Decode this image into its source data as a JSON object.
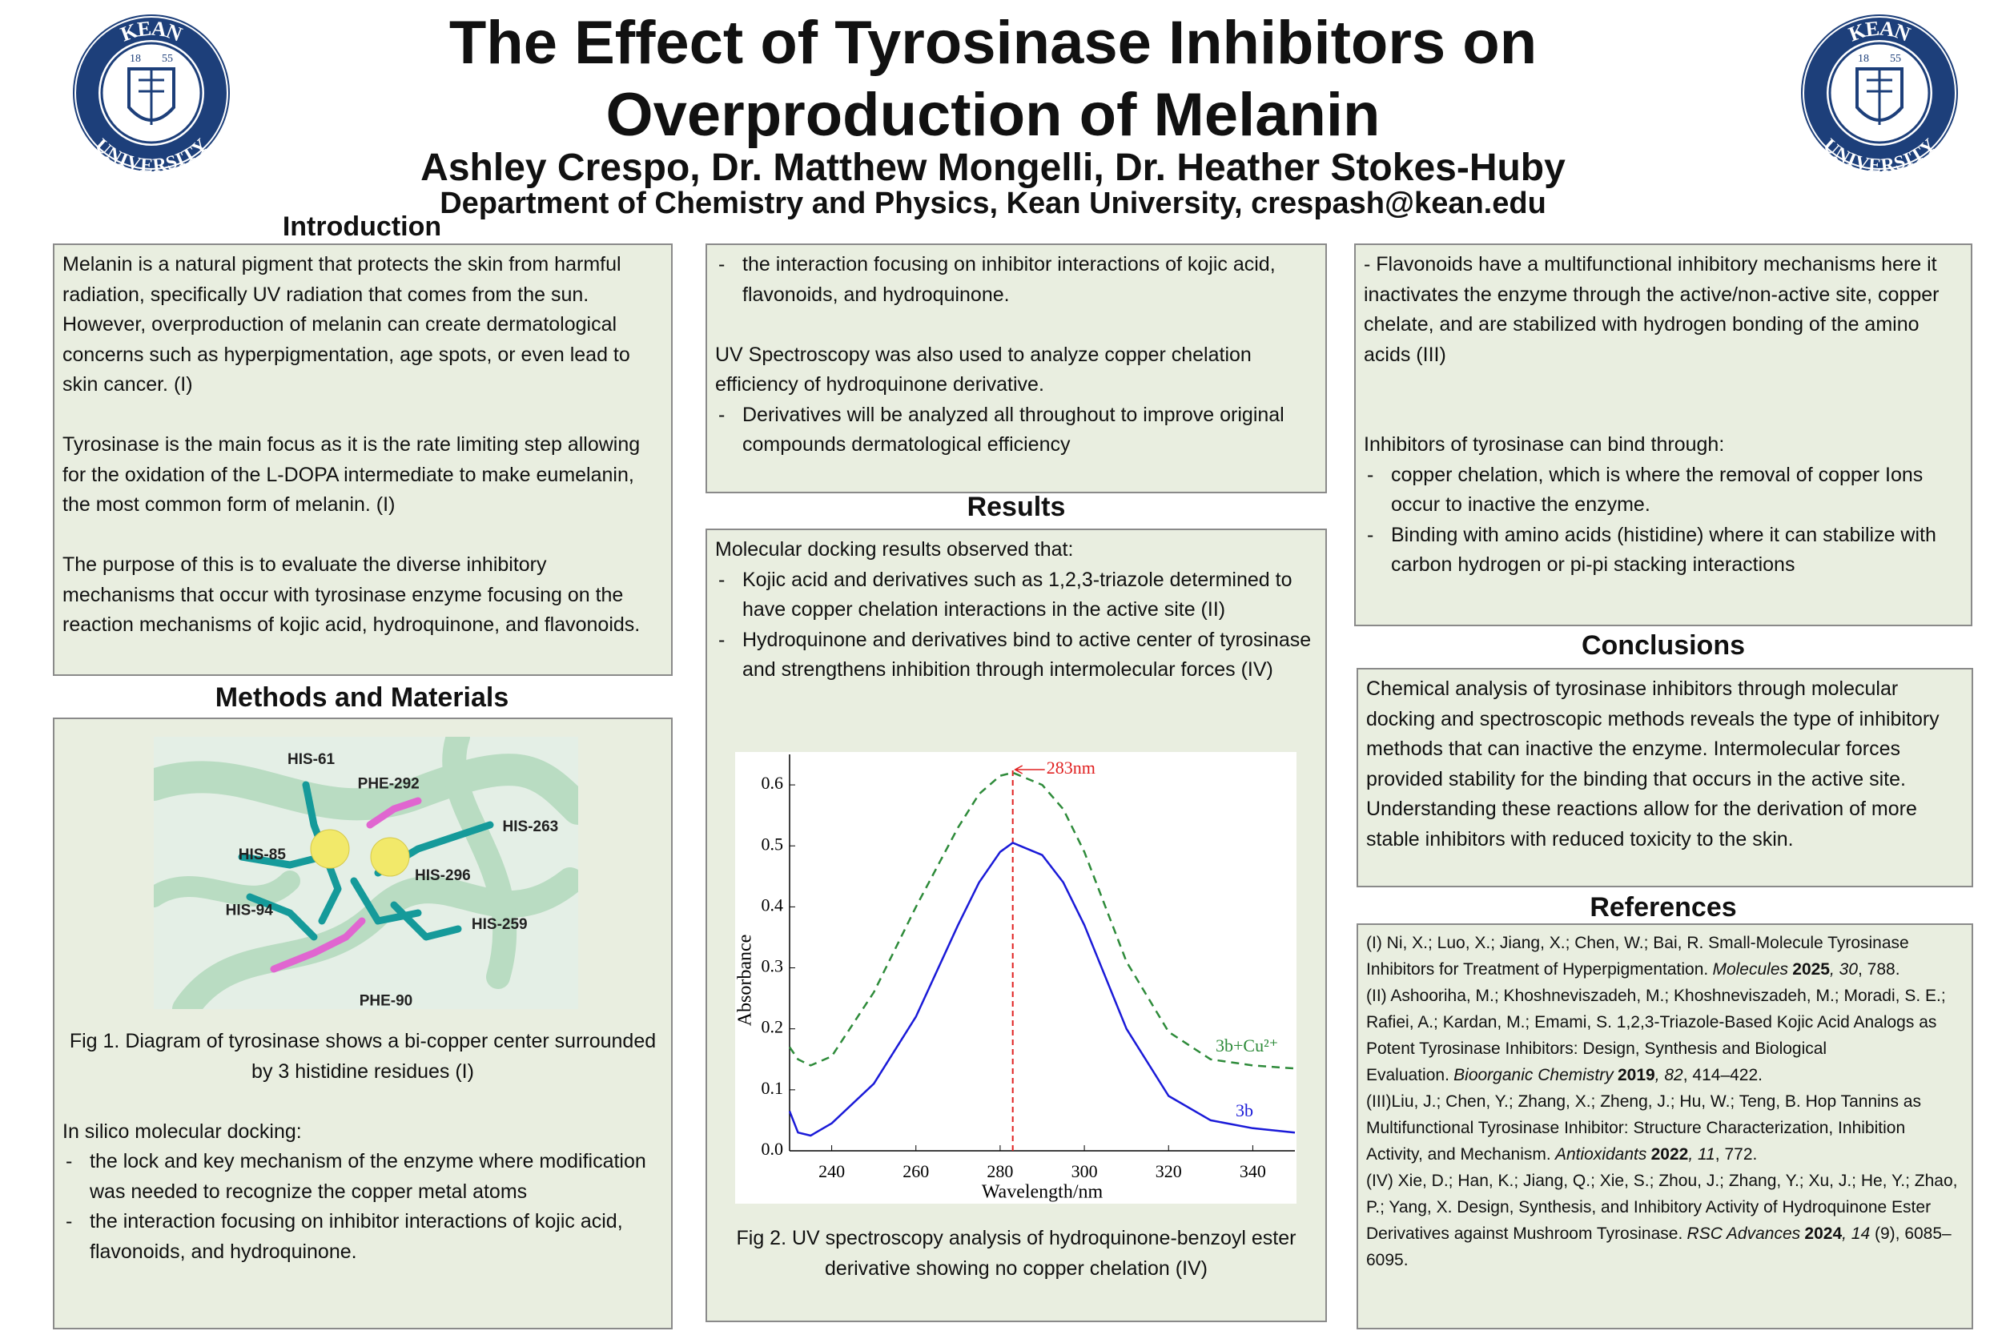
{
  "header": {
    "title_line1": "The Effect of Tyrosinase Inhibitors on",
    "title_line2": "Overproduction of Melanin",
    "authors": "Ashley Crespo, Dr. Matthew Mongelli, Dr. Heather Stokes-Huby",
    "affiliation": "Department of Chemistry and Physics, Kean University, crespash@kean.edu"
  },
  "logo": {
    "top": "KEAN",
    "bottom": "UNIVERSITY",
    "year_left": "18",
    "year_right": "55"
  },
  "bullet": "-",
  "introduction": {
    "heading": "Introduction",
    "paragraphs": [
      "Melanin is a natural pigment that protects the skin from harmful radiation, specifically UV radiation that comes from the sun. However, overproduction of melanin can create dermatological concerns such as hyperpigmentation, age spots, or even lead to skin cancer. (I)",
      "Tyrosinase is the main focus as it is the rate limiting step allowing for the oxidation of the L-DOPA intermediate to make eumelanin, the most common form of melanin. (I)",
      "The purpose of this is to evaluate the diverse inhibitory mechanisms that occur with tyrosinase enzyme focusing  on the reaction mechanisms of kojic acid, hydroquinone, and flavonoids."
    ]
  },
  "methods": {
    "heading": "Methods and Materials",
    "figure1": {
      "labels": [
        "HIS-61",
        "PHE-292",
        "HIS-263",
        "HIS-85",
        "HIS-296",
        "HIS-94",
        "HIS-259",
        "PHE-90"
      ],
      "caption": "Fig 1. Diagram of tyrosinase shows a bi-copper center surrounded by 3 histidine residues (I)"
    },
    "subheading": "In silico molecular docking:",
    "items": [
      "the lock and key mechanism of the enzyme where modification was needed to recognize the copper metal atoms",
      "the interaction focusing on inhibitor interactions of kojic acid, flavonoids, and hydroquinone."
    ]
  },
  "methods_continued": {
    "items": [
      "the interaction focusing on inhibitor interactions of kojic acid, flavonoids, and hydroquinone."
    ],
    "paragraph": "UV Spectroscopy was also used to  analyze copper chelation efficiency of hydroquinone derivative.",
    "items2": [
      "Derivatives will be analyzed all throughout to improve original compounds dermatological efficiency"
    ]
  },
  "results": {
    "heading": "Results",
    "intro": "Molecular docking results observed that:",
    "items": [
      "Kojic acid and derivatives such as 1,2,3-triazole determined to have copper chelation interactions in the active site (II)",
      "Hydroquinone and derivatives bind to active center of tyrosinase and strengthens inhibition through intermolecular forces (IV)"
    ],
    "caption": "Fig 2. UV spectroscopy analysis of hydroquinone-benzoyl ester derivative showing no copper chelation (IV)"
  },
  "chart_data": {
    "type": "line",
    "xlabel": "Wavelength/nm",
    "ylabel": "Absorbance",
    "x": [
      230,
      232,
      235,
      240,
      250,
      260,
      270,
      275,
      280,
      283,
      290,
      295,
      300,
      310,
      320,
      330,
      340,
      350
    ],
    "series": [
      {
        "name": "3b",
        "color": "#1a1ad8",
        "dashed": false,
        "values": [
          0.065,
          0.03,
          0.025,
          0.045,
          0.11,
          0.22,
          0.37,
          0.44,
          0.49,
          0.505,
          0.485,
          0.44,
          0.37,
          0.2,
          0.09,
          0.05,
          0.037,
          0.03
        ]
      },
      {
        "name": "3b+Cu²⁺",
        "color": "#2e8b3a",
        "dashed": true,
        "values": [
          0.17,
          0.15,
          0.14,
          0.155,
          0.26,
          0.4,
          0.53,
          0.585,
          0.615,
          0.62,
          0.6,
          0.56,
          0.49,
          0.31,
          0.195,
          0.15,
          0.14,
          0.135
        ]
      }
    ],
    "xlim": [
      230,
      350
    ],
    "ylim": [
      0,
      0.65
    ],
    "xticks": [
      240,
      260,
      280,
      300,
      320,
      340
    ],
    "yticks": [
      {
        "value": 0,
        "label": "0.0"
      },
      0.1,
      0.2,
      0.3,
      0.4,
      0.5,
      0.6
    ],
    "annotation": {
      "text": "283nm",
      "x": 283,
      "color": "#e02020"
    }
  },
  "discussion": {
    "paragraph": "- Flavonoids have a multifunctional inhibitory mechanisms here it inactivates the enzyme through the active/non-active site, copper chelate, and are stabilized with hydrogen bonding of the amino acids (III)",
    "subheading": "Inhibitors of tyrosinase can bind through:",
    "items": [
      "copper chelation, which is where the removal of copper Ions occur to inactive the enzyme.",
      "Binding with amino acids (histidine) where it can stabilize with carbon hydrogen or pi-pi stacking interactions"
    ]
  },
  "conclusions": {
    "heading": "Conclusions",
    "text": "Chemical analysis of tyrosinase inhibitors through molecular docking and spectroscopic methods reveals the type of inhibitory methods that can inactive the enzyme. Intermolecular forces provided stability for the binding that occurs in the active site. Understanding these reactions allow for the derivation of more stable inhibitors with reduced toxicity to the skin."
  },
  "references": {
    "heading": "References",
    "items": [
      {
        "text": "(I) Ni, X.; Luo, X.; Jiang, X.; Chen, W.; Bai, R. Small-Molecule Tyrosinase Inhibitors for Treatment of Hyperpigmentation.",
        "journal": "Molecules",
        "year": "2025",
        "volume": ", 30",
        "pages": ", 788."
      },
      {
        "text": "(II) Ashooriha, M.; Khoshneviszadeh, M.; Khoshneviszadeh, M.; Moradi, S. E.; Rafiei, A.; Kardan, M.; Emami, S. 1,2,3-Triazole-Based Kojic Acid Analogs as Potent Tyrosinase Inhibitors: Design, Synthesis and Biological Evaluation.",
        "journal": "Bioorganic Chemistry",
        "year": "2019",
        "volume": ", 82",
        "pages": ", 414–422."
      },
      {
        "text": "(III)Liu, J.; Chen, Y.; Zhang, X.; Zheng, J.; Hu, W.; Teng, B. Hop Tannins as Multifunctional Tyrosinase Inhibitor: Structure Characterization, Inhibition Activity, and Mechanism.",
        "journal": "Antioxidants",
        "year": "2022",
        "volume": ", 11",
        "pages": ", 772."
      },
      {
        "text": "(IV) Xie, D.; Han, K.; Jiang, Q.; Xie, S.; Zhou, J.; Zhang, Y.; Xu, J.; He, Y.; Zhao, P.; Yang, X. Design, Synthesis, and Inhibitory Activity of Hydroquinone Ester Derivatives against Mushroom Tyrosinase.",
        "journal": "RSC Advances",
        "year": "2024",
        "volume": ", 14",
        "pages": " (9), 6085–6095."
      }
    ]
  }
}
